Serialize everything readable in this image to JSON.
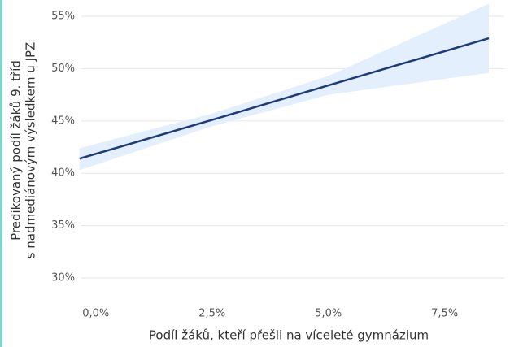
{
  "chart_data": {
    "type": "line",
    "x": [
      -0.35,
      2.5,
      5,
      8.45
    ],
    "series": [
      {
        "color": "#1f3a78",
        "values": [
          41.4,
          45.1,
          48.4,
          52.9
        ]
      }
    ],
    "band": {
      "color": "#e3effc",
      "lower": [
        40.3,
        44.5,
        47.5,
        49.6
      ],
      "upper": [
        42.4,
        45.7,
        49.3,
        56.2
      ]
    },
    "xlabel": "Podíl žáků, kteří přešli na víceleté gymnázium",
    "ylabel": [
      "Predikovaný podíl žáků 9. tříd",
      "s nadmediánovým výsledkem u JPZ"
    ],
    "xlim": [
      -0.8,
      8.8
    ],
    "ylim": [
      28,
      56.5
    ],
    "xticks": [
      {
        "value": 0,
        "label": "0,0%"
      },
      {
        "value": 2.5,
        "label": "2,5%"
      },
      {
        "value": 5,
        "label": "5,0%"
      },
      {
        "value": 7.5,
        "label": "7,5%"
      }
    ],
    "yticks": [
      {
        "value": 30,
        "label": "30%"
      },
      {
        "value": 35,
        "label": "35%"
      },
      {
        "value": 40,
        "label": "40%"
      },
      {
        "value": 45,
        "label": "45%"
      },
      {
        "value": 50,
        "label": "50%"
      },
      {
        "value": 55,
        "label": "55%"
      }
    ],
    "grid": true
  }
}
